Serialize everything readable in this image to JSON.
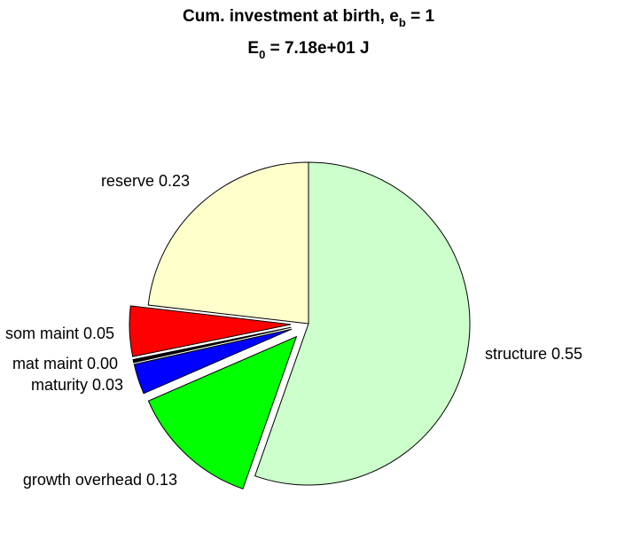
{
  "chart_data": {
    "type": "pie",
    "title_parts": {
      "line1_main": "Cum. investment at birth, e",
      "line1_sub": "b",
      "line1_tail": " = 1",
      "line2_main": "E",
      "line2_sub": "0",
      "line2_tail": " = 7.18e+01 J"
    },
    "slices": [
      {
        "label": "structure 0.55",
        "value": 0.55,
        "color": "#ccffcc",
        "exploded": false
      },
      {
        "label": "growth overhead 0.13",
        "value": 0.13,
        "color": "#00ff00",
        "exploded": true
      },
      {
        "label": "maturity 0.03",
        "value": 0.03,
        "color": "#0000ff",
        "exploded": true
      },
      {
        "label": "mat maint 0.00",
        "value": 0.003,
        "color": "#000000",
        "exploded": true
      },
      {
        "label": "som maint 0.05",
        "value": 0.05,
        "color": "#ff0000",
        "exploded": true
      },
      {
        "label": "reserve 0.23",
        "value": 0.23,
        "color": "#ffffcc",
        "exploded": false
      }
    ]
  }
}
